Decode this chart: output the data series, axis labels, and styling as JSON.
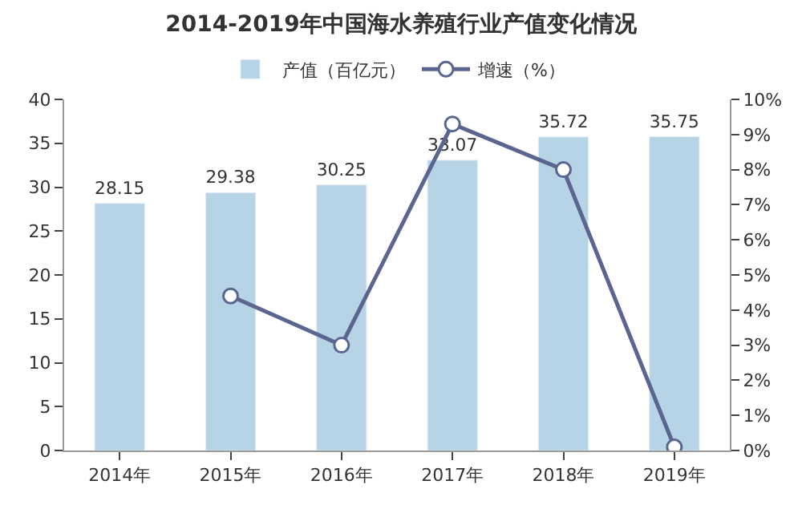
{
  "chart_data": {
    "type": "bar",
    "title": "2014-2019年中国海水养殖行业产值变化情况",
    "categories": [
      "2014年",
      "2015年",
      "2016年",
      "2017年",
      "2018年",
      "2019年"
    ],
    "series": [
      {
        "name": "产值（百亿元）",
        "color": "#b7d3e6",
        "values": [
          28.15,
          29.38,
          30.25,
          33.07,
          35.72,
          35.75
        ],
        "value_labels": [
          "28.15",
          "29.38",
          "30.25",
          "33.07",
          "35.72",
          "35.75"
        ]
      },
      {
        "name": "增速（%）",
        "type": "line",
        "axis": "y2",
        "color": "#5a6690",
        "marker": "circle",
        "values": [
          null,
          4.4,
          3.0,
          9.3,
          8.0,
          0.1
        ]
      }
    ],
    "ylim": [
      0,
      40
    ],
    "yticks": [
      0,
      5,
      10,
      15,
      20,
      25,
      30,
      35,
      40
    ],
    "y2lim": [
      0,
      10
    ],
    "y2ticks": [
      {
        "value": 0,
        "label": "0%"
      },
      {
        "value": 1,
        "label": "1%"
      },
      {
        "value": 2,
        "label": "2%"
      },
      {
        "value": 3,
        "label": "3%"
      },
      {
        "value": 4,
        "label": "4%"
      },
      {
        "value": 5,
        "label": "5%"
      },
      {
        "value": 6,
        "label": "6%"
      },
      {
        "value": 7,
        "label": "7%"
      },
      {
        "value": 8,
        "label": "8%"
      },
      {
        "value": 9,
        "label": "9%"
      },
      {
        "value": 10,
        "label": "10%"
      }
    ],
    "legend": "top"
  }
}
